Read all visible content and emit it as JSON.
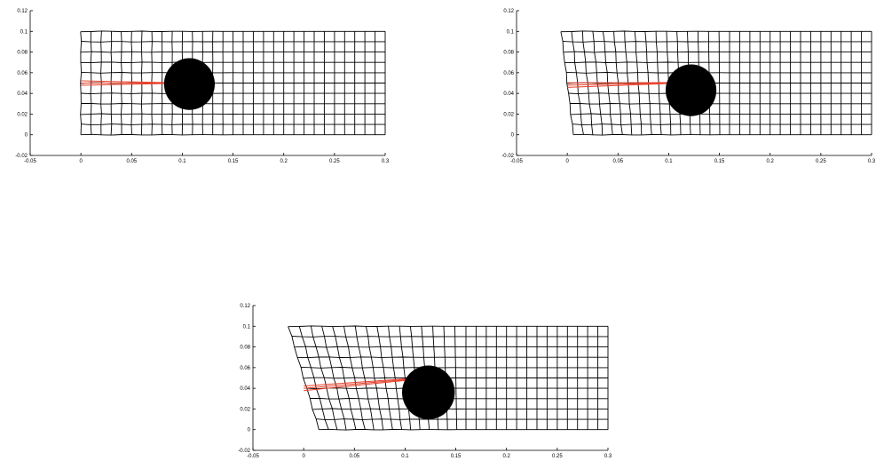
{
  "figure": {
    "panels": [
      {
        "id": "top-left",
        "x_ticks": [
          "-0.05",
          "0",
          "0.05",
          "0.1",
          "0.15",
          "0.2",
          "0.25",
          "0.3"
        ],
        "y_ticks": [
          "-0.02",
          "0",
          "0.02",
          "0.04",
          "0.06",
          "0.08",
          "0.1",
          "0.12"
        ],
        "xlim": [
          -0.05,
          0.3
        ],
        "ylim": [
          -0.02,
          0.12
        ],
        "mesh": {
          "x_range": [
            0,
            0.3
          ],
          "y_range": [
            0,
            0.1
          ],
          "cols": 30,
          "rows": 10,
          "left_edge_shear": 0.0
        },
        "crack": {
          "from": [
            0,
            0.05
          ],
          "to": [
            0.085,
            0.05
          ],
          "color": "#e8402a"
        },
        "disk": {
          "center": [
            0.107,
            0.049
          ],
          "radius": 0.025,
          "color": "#000000"
        }
      },
      {
        "id": "top-right",
        "x_ticks": [
          "-0.05",
          "0",
          "0.05",
          "0.1",
          "0.15",
          "0.2",
          "0.25",
          "0.3"
        ],
        "y_ticks": [
          "-0.02",
          "0",
          "0.02",
          "0.04",
          "0.06",
          "0.08",
          "0.1",
          "0.12"
        ],
        "xlim": [
          -0.05,
          0.3
        ],
        "ylim": [
          -0.02,
          0.12
        ],
        "mesh": {
          "x_range": [
            0,
            0.3
          ],
          "y_range": [
            0,
            0.1
          ],
          "cols": 30,
          "rows": 10,
          "left_edge_shear": 0.002
        },
        "crack": {
          "from": [
            0,
            0.048
          ],
          "to": [
            0.1,
            0.05
          ],
          "color": "#e8402a"
        },
        "disk": {
          "center": [
            0.122,
            0.043
          ],
          "radius": 0.025,
          "color": "#000000"
        }
      },
      {
        "id": "bottom-center",
        "x_ticks": [
          "-0.05",
          "0",
          "0.05",
          "0.1",
          "0.15",
          "0.2",
          "0.25",
          "0.3"
        ],
        "y_ticks": [
          "-0.02",
          "0",
          "0.02",
          "0.04",
          "0.06",
          "0.08",
          "0.1",
          "0.12"
        ],
        "xlim": [
          -0.05,
          0.3
        ],
        "ylim": [
          -0.02,
          0.12
        ],
        "mesh": {
          "x_range": [
            0,
            0.3
          ],
          "y_range": [
            0,
            0.1
          ],
          "cols": 30,
          "rows": 10,
          "left_edge_shear": 0.005
        },
        "crack": {
          "from": [
            0,
            0.04
          ],
          "to": [
            0.12,
            0.05
          ],
          "color": "#e8402a"
        },
        "disk": {
          "center": [
            0.123,
            0.036
          ],
          "radius": 0.026,
          "color": "#000000"
        }
      }
    ]
  }
}
